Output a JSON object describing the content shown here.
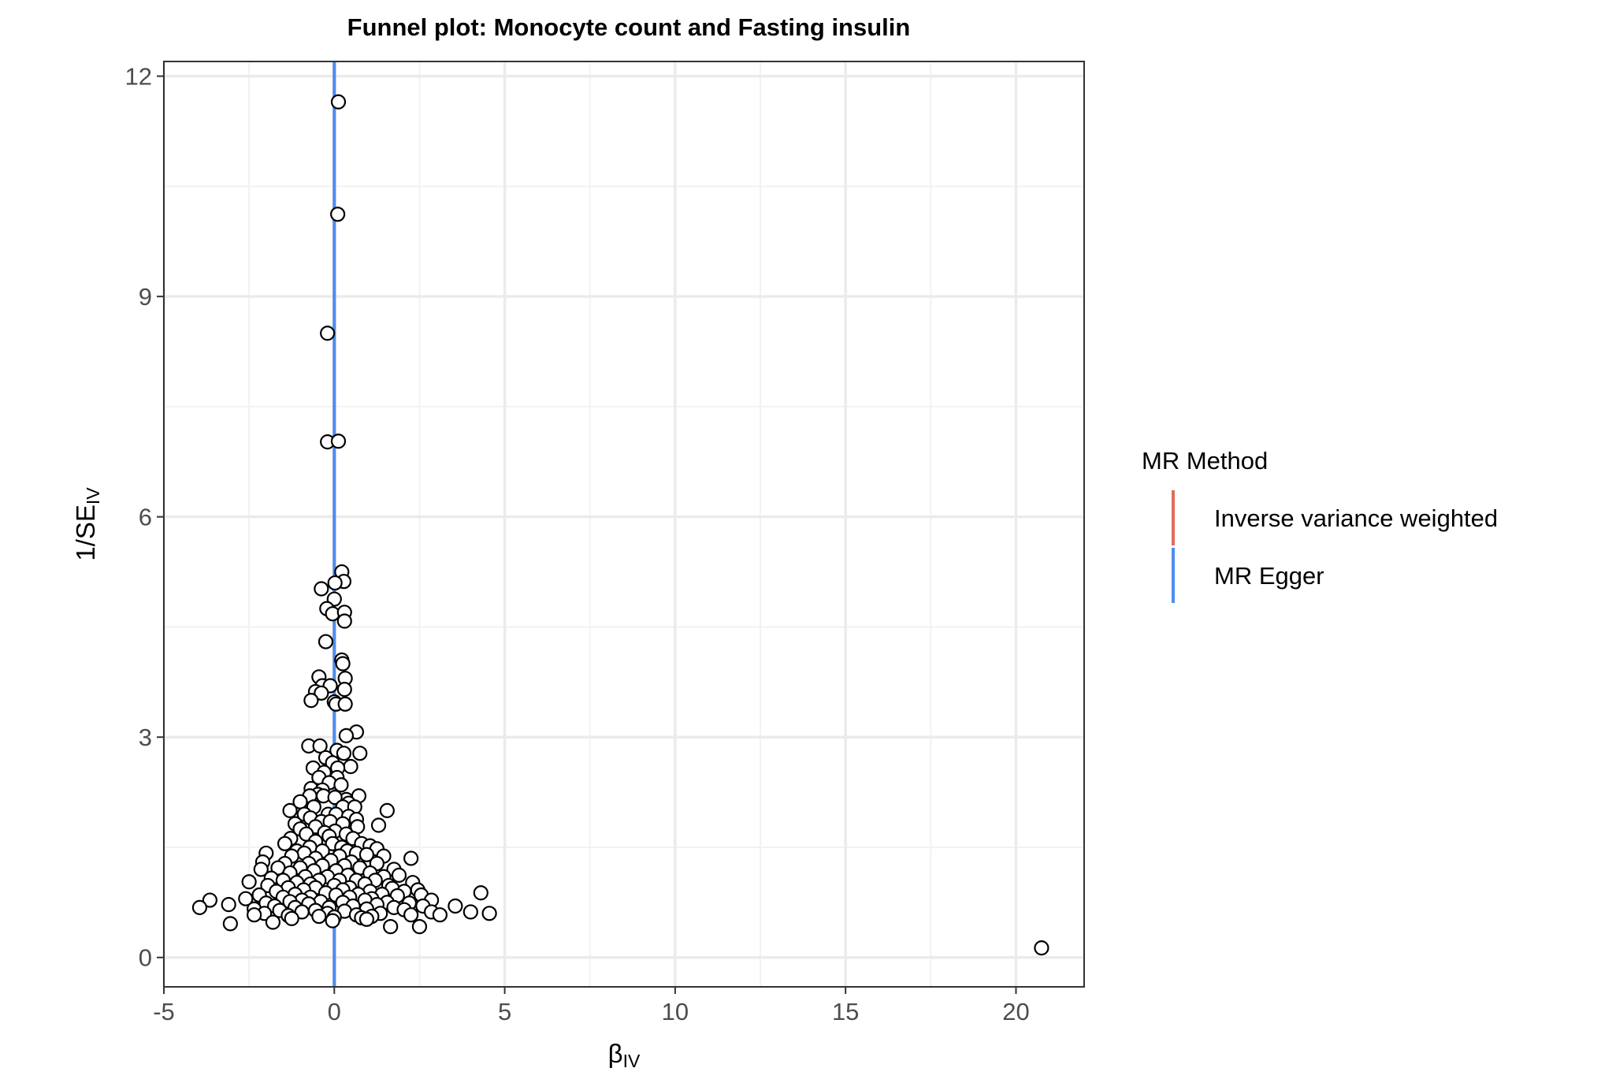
{
  "chart_data": {
    "type": "scatter",
    "title": "Funnel plot: Monocyte count and Fasting insulin",
    "xlabel": {
      "main": "β",
      "sub": "IV"
    },
    "ylabel": {
      "main": "1/SE",
      "sub": "IV"
    },
    "xlim": [
      -5,
      22
    ],
    "ylim": [
      -0.4,
      12.2
    ],
    "x_ticks": [
      -5,
      0,
      5,
      10,
      15,
      20
    ],
    "x_tick_labels": [
      "-5",
      "0",
      "5",
      "10",
      "15",
      "20"
    ],
    "y_ticks": [
      0,
      3,
      6,
      9,
      12
    ],
    "y_tick_labels": [
      "0",
      "3",
      "6",
      "9",
      "12"
    ],
    "grid": true,
    "legend": {
      "title": "MR Method",
      "placement": "right",
      "entries": [
        {
          "label": "Inverse variance weighted",
          "color": "#e06c63"
        },
        {
          "label": "MR Egger",
          "color": "#4d8ef0"
        }
      ]
    },
    "vlines": [
      {
        "method": "Inverse variance weighted",
        "x": 0.0,
        "color": "#e06c63"
      },
      {
        "method": "MR Egger",
        "x": 0.0,
        "color": "#4d8ef0"
      }
    ],
    "points": [
      [
        0.12,
        11.65
      ],
      [
        0.1,
        10.12
      ],
      [
        -0.2,
        8.5
      ],
      [
        -0.2,
        7.02
      ],
      [
        0.12,
        7.03
      ],
      [
        0.22,
        5.25
      ],
      [
        0.28,
        5.12
      ],
      [
        0.02,
        5.1
      ],
      [
        -0.38,
        5.02
      ],
      [
        0.0,
        4.88
      ],
      [
        -0.22,
        4.75
      ],
      [
        -0.05,
        4.68
      ],
      [
        0.3,
        4.7
      ],
      [
        0.3,
        4.58
      ],
      [
        -0.25,
        4.3
      ],
      [
        0.22,
        4.05
      ],
      [
        0.25,
        4.0
      ],
      [
        -0.45,
        3.82
      ],
      [
        0.32,
        3.8
      ],
      [
        -0.35,
        3.7
      ],
      [
        -0.12,
        3.7
      ],
      [
        0.3,
        3.65
      ],
      [
        -0.55,
        3.62
      ],
      [
        -0.38,
        3.6
      ],
      [
        -0.68,
        3.5
      ],
      [
        0.0,
        3.48
      ],
      [
        0.05,
        3.45
      ],
      [
        0.32,
        3.45
      ],
      [
        0.65,
        3.07
      ],
      [
        0.35,
        3.02
      ],
      [
        -0.75,
        2.88
      ],
      [
        -0.42,
        2.88
      ],
      [
        0.08,
        2.82
      ],
      [
        0.28,
        2.78
      ],
      [
        0.75,
        2.78
      ],
      [
        -0.25,
        2.72
      ],
      [
        -0.05,
        2.65
      ],
      [
        0.48,
        2.6
      ],
      [
        -0.62,
        2.58
      ],
      [
        0.1,
        2.58
      ],
      [
        -0.3,
        2.52
      ],
      [
        -0.45,
        2.45
      ],
      [
        0.08,
        2.45
      ],
      [
        -0.15,
        2.38
      ],
      [
        0.2,
        2.35
      ],
      [
        -0.68,
        2.3
      ],
      [
        -0.35,
        2.28
      ],
      [
        -0.48,
        2.22
      ],
      [
        -0.72,
        2.2
      ],
      [
        0.35,
        2.15
      ],
      [
        -0.32,
        2.2
      ],
      [
        0.02,
        2.18
      ],
      [
        0.72,
        2.2
      ],
      [
        -1.0,
        2.12
      ],
      [
        0.42,
        2.1
      ],
      [
        -0.6,
        2.05
      ],
      [
        0.25,
        2.05
      ],
      [
        0.6,
        2.05
      ],
      [
        -1.3,
        2.0
      ],
      [
        1.55,
        2.0
      ],
      [
        -0.88,
        1.95
      ],
      [
        -0.18,
        1.95
      ],
      [
        0.05,
        1.95
      ],
      [
        0.42,
        1.92
      ],
      [
        -0.7,
        1.9
      ],
      [
        0.65,
        1.88
      ],
      [
        -0.38,
        1.85
      ],
      [
        -0.12,
        1.85
      ],
      [
        -1.15,
        1.82
      ],
      [
        0.25,
        1.82
      ],
      [
        1.3,
        1.8
      ],
      [
        -0.55,
        1.78
      ],
      [
        -1.0,
        1.75
      ],
      [
        0.02,
        1.72
      ],
      [
        0.68,
        1.78
      ],
      [
        -0.28,
        1.7
      ],
      [
        -0.82,
        1.68
      ],
      [
        0.35,
        1.68
      ],
      [
        -1.28,
        1.62
      ],
      [
        -0.15,
        1.65
      ],
      [
        0.55,
        1.62
      ],
      [
        -0.55,
        1.58
      ],
      [
        0.8,
        1.55
      ],
      [
        -1.45,
        1.55
      ],
      [
        -0.05,
        1.55
      ],
      [
        -0.72,
        1.5
      ],
      [
        0.22,
        1.5
      ],
      [
        1.05,
        1.52
      ],
      [
        -1.1,
        1.45
      ],
      [
        -0.35,
        1.45
      ],
      [
        0.38,
        1.45
      ],
      [
        1.25,
        1.48
      ],
      [
        -2.0,
        1.42
      ],
      [
        -0.88,
        1.42
      ],
      [
        0.65,
        1.42
      ],
      [
        -1.25,
        1.38
      ],
      [
        0.15,
        1.38
      ],
      [
        0.95,
        1.4
      ],
      [
        1.45,
        1.38
      ],
      [
        2.25,
        1.35
      ],
      [
        -0.55,
        1.35
      ],
      [
        -2.1,
        1.3
      ],
      [
        -0.1,
        1.32
      ],
      [
        -1.45,
        1.28
      ],
      [
        -0.75,
        1.28
      ],
      [
        0.5,
        1.3
      ],
      [
        1.25,
        1.28
      ],
      [
        -0.35,
        1.25
      ],
      [
        0.3,
        1.25
      ],
      [
        -1.65,
        1.22
      ],
      [
        -1.0,
        1.22
      ],
      [
        0.75,
        1.22
      ],
      [
        1.75,
        1.2
      ],
      [
        -2.15,
        1.2
      ],
      [
        -0.6,
        1.18
      ],
      [
        0.05,
        1.18
      ],
      [
        1.05,
        1.15
      ],
      [
        -1.3,
        1.15
      ],
      [
        0.4,
        1.12
      ],
      [
        1.9,
        1.12
      ],
      [
        -0.85,
        1.1
      ],
      [
        -0.2,
        1.1
      ],
      [
        1.45,
        1.1
      ],
      [
        -1.85,
        1.08
      ],
      [
        -1.5,
        1.05
      ],
      [
        0.65,
        1.05
      ],
      [
        -0.45,
        1.05
      ],
      [
        0.15,
        1.05
      ],
      [
        1.2,
        1.05
      ],
      [
        2.3,
        1.02
      ],
      [
        -2.5,
        1.03
      ],
      [
        -1.1,
        1.02
      ],
      [
        -0.7,
        1.0
      ],
      [
        0.9,
        1.0
      ],
      [
        -1.95,
        0.98
      ],
      [
        0.0,
        0.98
      ],
      [
        1.6,
        0.98
      ],
      [
        -1.35,
        0.95
      ],
      [
        -0.55,
        0.95
      ],
      [
        0.45,
        0.95
      ],
      [
        1.7,
        0.94
      ],
      [
        2.45,
        0.92
      ],
      [
        -0.9,
        0.92
      ],
      [
        0.25,
        0.92
      ],
      [
        -1.7,
        0.9
      ],
      [
        1.05,
        0.9
      ],
      [
        2.05,
        0.9
      ],
      [
        4.3,
        0.88
      ],
      [
        -0.25,
        0.88
      ],
      [
        -1.15,
        0.86
      ],
      [
        0.7,
        0.86
      ],
      [
        1.4,
        0.86
      ],
      [
        -2.2,
        0.85
      ],
      [
        0.05,
        0.85
      ],
      [
        1.85,
        0.84
      ],
      [
        2.55,
        0.85
      ],
      [
        -0.7,
        0.82
      ],
      [
        -1.5,
        0.82
      ],
      [
        0.45,
        0.82
      ],
      [
        1.1,
        0.8
      ],
      [
        -2.6,
        0.8
      ],
      [
        -3.65,
        0.78
      ],
      [
        -0.95,
        0.78
      ],
      [
        0.9,
        0.78
      ],
      [
        2.85,
        0.78
      ],
      [
        -1.3,
        0.76
      ],
      [
        -0.4,
        0.76
      ],
      [
        0.25,
        0.75
      ],
      [
        1.55,
        0.75
      ],
      [
        2.2,
        0.74
      ],
      [
        -2.0,
        0.74
      ],
      [
        -0.75,
        0.73
      ],
      [
        1.25,
        0.72
      ],
      [
        -3.1,
        0.72
      ],
      [
        -1.75,
        0.7
      ],
      [
        0.55,
        0.7
      ],
      [
        3.55,
        0.7
      ],
      [
        2.6,
        0.7
      ],
      [
        -3.95,
        0.68
      ],
      [
        -1.15,
        0.68
      ],
      [
        -0.15,
        0.68
      ],
      [
        1.75,
        0.68
      ],
      [
        -2.35,
        0.66
      ],
      [
        0.95,
        0.66
      ],
      [
        2.05,
        0.65
      ],
      [
        -1.6,
        0.64
      ],
      [
        -0.55,
        0.64
      ],
      [
        0.3,
        0.63
      ],
      [
        -0.95,
        0.62
      ],
      [
        2.85,
        0.62
      ],
      [
        4.0,
        0.62
      ],
      [
        1.35,
        0.6
      ],
      [
        -2.05,
        0.6
      ],
      [
        -0.2,
        0.6
      ],
      [
        0.65,
        0.58
      ],
      [
        2.25,
        0.58
      ],
      [
        3.1,
        0.58
      ],
      [
        4.55,
        0.6
      ],
      [
        -2.35,
        0.58
      ],
      [
        -1.35,
        0.57
      ],
      [
        1.1,
        0.56
      ],
      [
        -0.45,
        0.56
      ],
      [
        0.0,
        0.55
      ],
      [
        0.8,
        0.54
      ],
      [
        -1.25,
        0.53
      ],
      [
        -0.05,
        0.5
      ],
      [
        -1.8,
        0.48
      ],
      [
        0.95,
        0.52
      ],
      [
        -3.05,
        0.46
      ],
      [
        1.65,
        0.42
      ],
      [
        2.5,
        0.42
      ],
      [
        20.75,
        0.13
      ]
    ]
  }
}
